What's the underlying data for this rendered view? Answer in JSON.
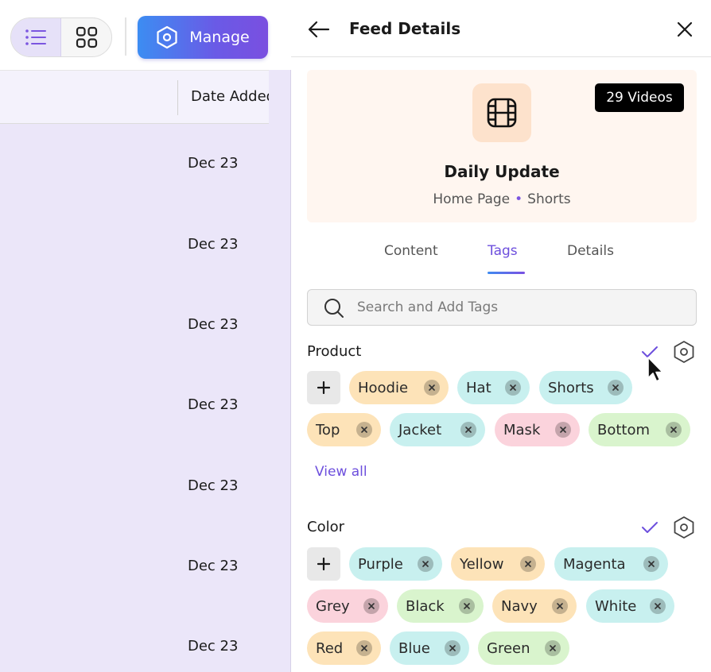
{
  "toolbar": {
    "list_view_icon": "list-icon",
    "grid_view_icon": "grid-icon",
    "manage_label": "Manage",
    "manage_icon": "hexagon-gear-icon"
  },
  "table": {
    "date_header": "Date Added",
    "dates": [
      "Dec 23",
      "Dec 23",
      "Dec 23",
      "Dec 23",
      "Dec 23",
      "Dec 23",
      "Dec 23"
    ]
  },
  "drawer": {
    "title": "Feed Details",
    "back_icon": "arrow-left-icon",
    "close_icon": "close-icon",
    "feed": {
      "icon": "film-icon",
      "video_count": "29 Videos",
      "name": "Daily Update",
      "location": "Home Page",
      "format": "Shorts",
      "separator": "•"
    },
    "tabs": [
      {
        "label": "Content",
        "active": false
      },
      {
        "label": "Tags",
        "active": true
      },
      {
        "label": "Details",
        "active": false
      }
    ],
    "search": {
      "placeholder": "Search and Add Tags",
      "value": ""
    },
    "sections": [
      {
        "title": "Product",
        "tags": [
          "Hoodie",
          "Hat",
          "Shorts",
          "Top",
          "Jacket",
          "Mask",
          "Bottom"
        ],
        "view_all": "View all"
      },
      {
        "title": "Color",
        "tags": [
          "Purple",
          "Yellow",
          "Magenta",
          "Grey",
          "Black",
          "Navy",
          "White",
          "Red",
          "Blue",
          "Green"
        ]
      }
    ]
  },
  "colors": {
    "accent": "#6d4fdd",
    "gradient_start": "#3c8df2",
    "gradient_end": "#7a4fe0",
    "tag_orange": "#fde3b8",
    "tag_teal": "#c8f0ef",
    "tag_pink": "#fbd3dc",
    "tag_green": "#d9f4cd"
  }
}
